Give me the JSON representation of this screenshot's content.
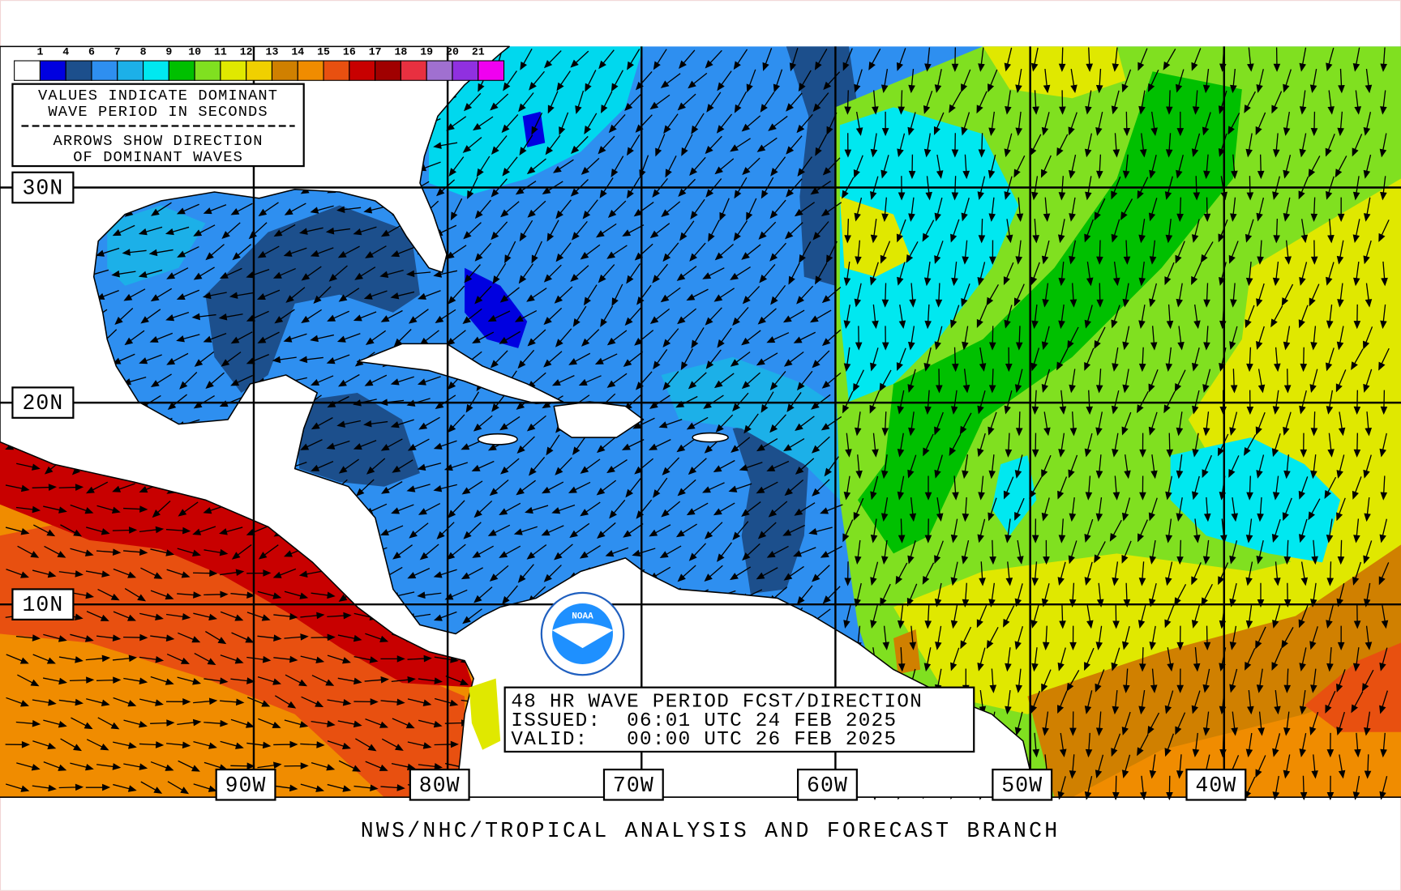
{
  "legend": {
    "labels": [
      1,
      4,
      6,
      7,
      8,
      9,
      10,
      11,
      12,
      13,
      14,
      15,
      16,
      17,
      18,
      19,
      20,
      21
    ],
    "colors": [
      "#ffffff",
      "#0000e0",
      "#1c4f8c",
      "#2e8ff0",
      "#1cb0e8",
      "#00e8f0",
      "#00c000",
      "#80e020",
      "#e0e800",
      "#f0d000",
      "#d08000",
      "#f08c00",
      "#e85010",
      "#c80000",
      "#a00000",
      "#e83040",
      "#a070d0",
      "#9030e0",
      "#f000f0"
    ]
  },
  "note": [
    "VALUES INDICATE DOMINANT",
    "WAVE PERIOD IN SECONDS",
    "ARROWS SHOW DIRECTION",
    "OF DOMINANT WAVES"
  ],
  "latitude_labels": [
    "30N",
    "20N",
    "10N"
  ],
  "longitude_labels": [
    "90W",
    "80W",
    "70W",
    "60W",
    "50W",
    "40W"
  ],
  "logo": "NOAA",
  "forecast_box": [
    "48 HR WAVE PERIOD FCST/DIRECTION",
    "ISSUED:  06:01 UTC 24 FEB 2025",
    "VALID:   00:00 UTC 26 FEB 2025"
  ],
  "footer": "NWS/NHC/TROPICAL ANALYSIS AND FORECAST BRANCH"
}
